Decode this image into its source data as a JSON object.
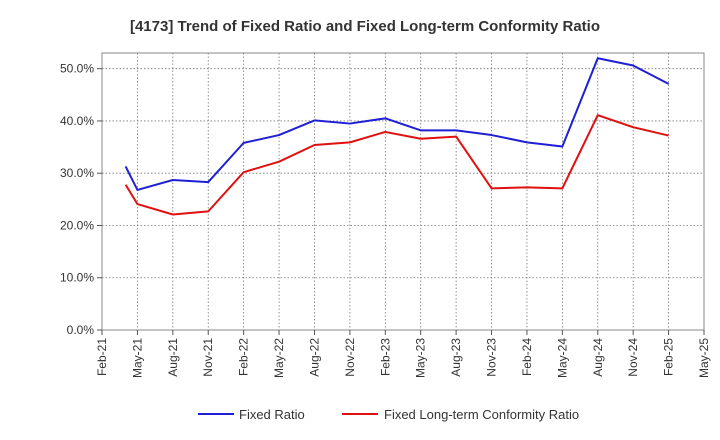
{
  "chart_data": {
    "type": "line",
    "title": "[4173]  Trend of Fixed Ratio and Fixed Long-term Conformity Ratio",
    "xlabel": "",
    "ylabel": "",
    "x_ticks": [
      "Feb-21",
      "May-21",
      "Aug-21",
      "Nov-21",
      "Feb-22",
      "May-22",
      "Aug-22",
      "Nov-22",
      "Feb-23",
      "May-23",
      "Aug-23",
      "Nov-23",
      "Feb-24",
      "May-24",
      "Aug-24",
      "Nov-24",
      "Feb-25",
      "May-25"
    ],
    "x": [
      "Apr-21",
      "May-21",
      "Aug-21",
      "Nov-21",
      "Feb-22",
      "May-22",
      "Aug-22",
      "Nov-22",
      "Feb-23",
      "May-23",
      "Aug-23",
      "Nov-23",
      "Feb-24",
      "May-24",
      "Aug-24",
      "Nov-24",
      "Feb-25"
    ],
    "y_ticks": [
      "0.0%",
      "10.0%",
      "20.0%",
      "30.0%",
      "40.0%",
      "50.0%"
    ],
    "ylim": [
      0,
      53
    ],
    "grid": true,
    "legend_position": "bottom",
    "series": [
      {
        "name": "Fixed Ratio",
        "color": "#1f1fd6",
        "values": [
          31.3,
          26.8,
          28.7,
          28.3,
          35.8,
          37.3,
          40.1,
          39.5,
          40.5,
          38.2,
          38.2,
          37.3,
          35.9,
          35.1,
          52.0,
          50.6,
          47.1
        ]
      },
      {
        "name": "Fixed Long-term Conformity Ratio",
        "color": "#e01010",
        "values": [
          27.8,
          24.1,
          22.1,
          22.7,
          30.2,
          32.2,
          35.4,
          35.9,
          37.9,
          36.6,
          37.0,
          27.1,
          27.3,
          27.1,
          41.1,
          38.8,
          37.2
        ]
      }
    ]
  }
}
